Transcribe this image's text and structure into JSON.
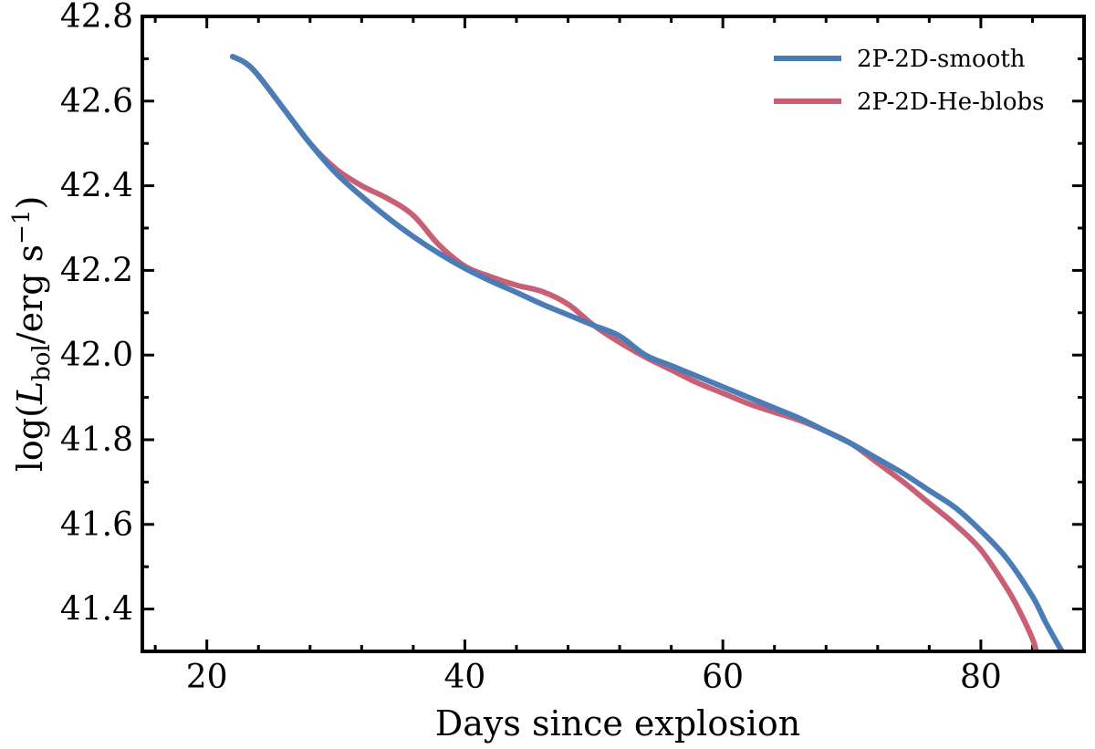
{
  "chart_data": {
    "type": "line",
    "xlabel": "Days since explosion",
    "ylabel": "log(L_bol/erg s^-1)",
    "ylabel_parts": {
      "prefix": "log(",
      "L": "L",
      "sub": "bol",
      "mid": "/erg s",
      "sup": "−1",
      "suffix": ")"
    },
    "xlim": [
      15,
      88
    ],
    "ylim": [
      41.3,
      42.8
    ],
    "x_ticks": [
      20,
      40,
      60,
      80
    ],
    "x_tick_labels": [
      "20",
      "40",
      "60",
      "80"
    ],
    "y_ticks": [
      41.4,
      41.6,
      41.8,
      42.0,
      42.2,
      42.4,
      42.6,
      42.8
    ],
    "y_tick_labels": [
      "41.4",
      "41.6",
      "41.8",
      "42.0",
      "42.2",
      "42.4",
      "42.6",
      "42.8"
    ],
    "legend_position": "top-right",
    "grid": false,
    "series": [
      {
        "name": "2P-2D-smooth",
        "color": "#4a7db5",
        "x": [
          22,
          23,
          24,
          26,
          28,
          30,
          32,
          34,
          36,
          38,
          40,
          42,
          44,
          46,
          48,
          50,
          52,
          54,
          56,
          58,
          60,
          62,
          64,
          66,
          68,
          70,
          72,
          74,
          76,
          78,
          80,
          82,
          84,
          85,
          86,
          86.3
        ],
        "y": [
          42.705,
          42.69,
          42.66,
          42.58,
          42.5,
          42.43,
          42.375,
          42.325,
          42.28,
          42.24,
          42.205,
          42.175,
          42.148,
          42.12,
          42.095,
          42.07,
          42.045,
          42.0,
          41.975,
          41.95,
          41.925,
          41.9,
          41.875,
          41.85,
          41.82,
          41.79,
          41.755,
          41.72,
          41.68,
          41.64,
          41.585,
          41.52,
          41.43,
          41.37,
          41.315,
          41.3
        ]
      },
      {
        "name": "2P-2D-He-blobs",
        "color": "#c95f75",
        "x": [
          22,
          23,
          24,
          26,
          28,
          30,
          32,
          34,
          36,
          38,
          40,
          42,
          44,
          46,
          48,
          50,
          52,
          54,
          56,
          58,
          60,
          62,
          64,
          66,
          68,
          70,
          72,
          74,
          76,
          78,
          80,
          82,
          83,
          84,
          84.3
        ],
        "y": [
          42.705,
          42.69,
          42.66,
          42.58,
          42.5,
          42.44,
          42.4,
          42.37,
          42.33,
          42.26,
          42.21,
          42.185,
          42.165,
          42.15,
          42.12,
          42.07,
          42.03,
          41.995,
          41.965,
          41.935,
          41.91,
          41.885,
          41.865,
          41.845,
          41.82,
          41.79,
          41.745,
          41.7,
          41.65,
          41.6,
          41.54,
          41.45,
          41.395,
          41.33,
          41.3
        ]
      }
    ]
  }
}
